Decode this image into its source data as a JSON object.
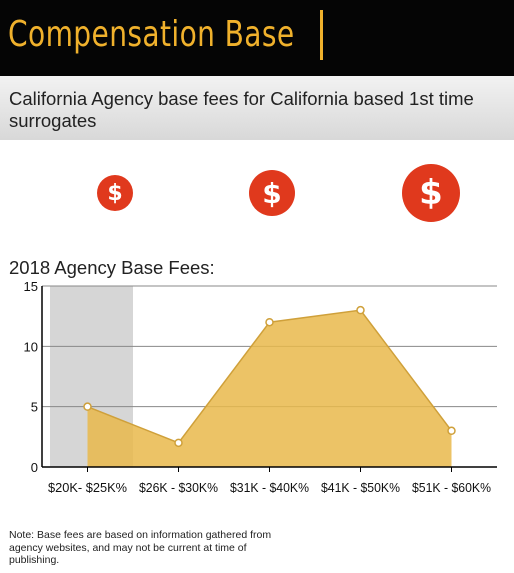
{
  "header": {
    "title": "Compensation Base"
  },
  "subtitle": "California Agency base fees for California based 1st time surrogates",
  "icons": {
    "dollar_glyph": "$",
    "icon_name": "dollar-circle-icon",
    "color": "#e0391d"
  },
  "chart_data": {
    "type": "area",
    "title": "2018 Agency Base Fees:",
    "categories": [
      "$20K- $25K%",
      "$26K - $30K%",
      "$31K - $40K%",
      "$41K - $50K%",
      "$51K - $60K%"
    ],
    "values": [
      5,
      2,
      12,
      13,
      3
    ],
    "ylim": [
      0,
      15
    ],
    "yticks": [
      0,
      5,
      10,
      15
    ],
    "grid": true,
    "fill_color": "#e9b94b",
    "line_color": "#cfa03a",
    "highlight_category": 0
  },
  "note": "Note: Base fees are based on information gathered from agency websites, and may not be current at time of publishing."
}
